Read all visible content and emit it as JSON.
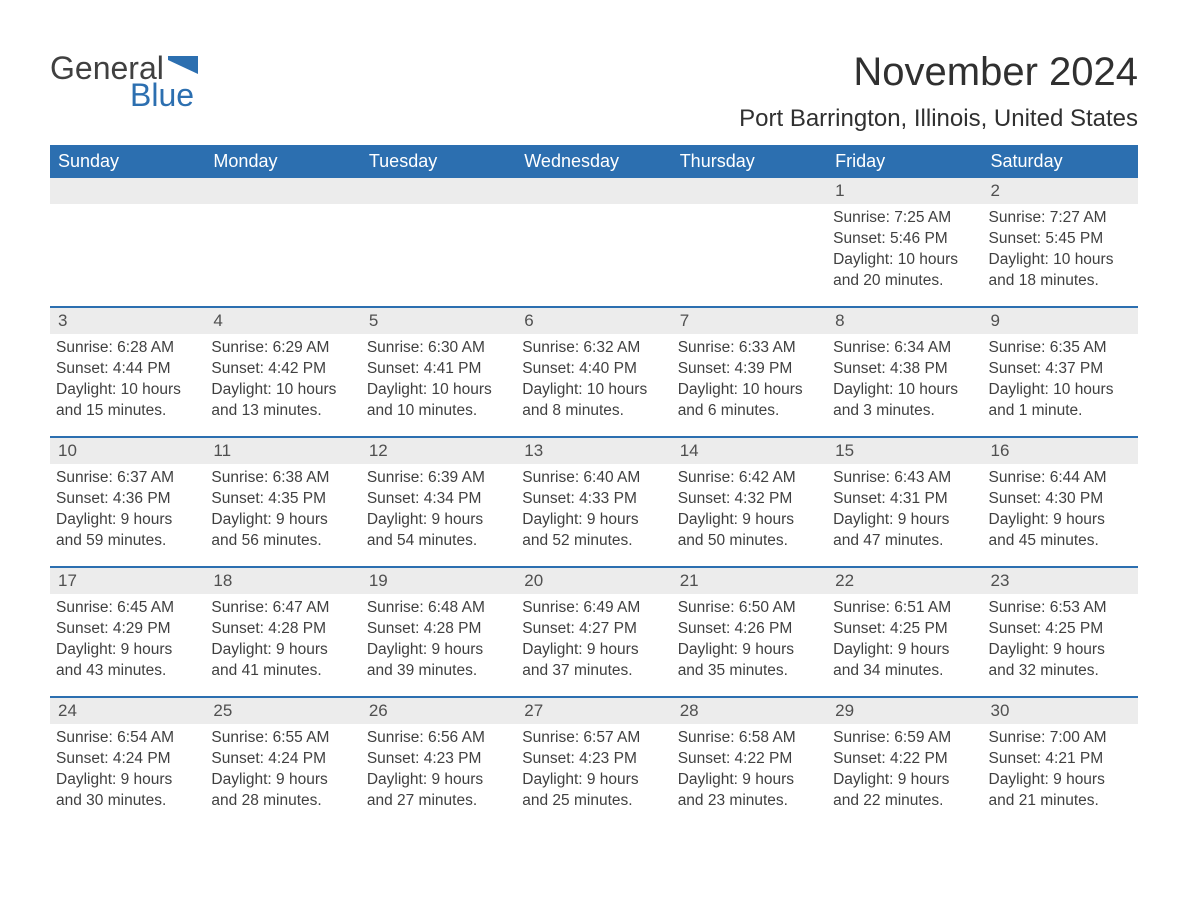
{
  "logo": {
    "word1": "General",
    "word2": "Blue",
    "flag_color": "#2c6fb0"
  },
  "title": "November 2024",
  "location": "Port Barrington, Illinois, United States",
  "colors": {
    "header_bg": "#2c6fb0",
    "header_text": "#ffffff",
    "daynum_bg": "#ececec",
    "week_divider": "#2c6fb0",
    "body_text": "#404040",
    "page_bg": "#ffffff"
  },
  "day_headers": [
    "Sunday",
    "Monday",
    "Tuesday",
    "Wednesday",
    "Thursday",
    "Friday",
    "Saturday"
  ],
  "weeks": [
    [
      {
        "empty": true
      },
      {
        "empty": true
      },
      {
        "empty": true
      },
      {
        "empty": true
      },
      {
        "empty": true
      },
      {
        "day": "1",
        "sunrise": "Sunrise: 7:25 AM",
        "sunset": "Sunset: 5:46 PM",
        "daylight": "Daylight: 10 hours and 20 minutes."
      },
      {
        "day": "2",
        "sunrise": "Sunrise: 7:27 AM",
        "sunset": "Sunset: 5:45 PM",
        "daylight": "Daylight: 10 hours and 18 minutes."
      }
    ],
    [
      {
        "day": "3",
        "sunrise": "Sunrise: 6:28 AM",
        "sunset": "Sunset: 4:44 PM",
        "daylight": "Daylight: 10 hours and 15 minutes."
      },
      {
        "day": "4",
        "sunrise": "Sunrise: 6:29 AM",
        "sunset": "Sunset: 4:42 PM",
        "daylight": "Daylight: 10 hours and 13 minutes."
      },
      {
        "day": "5",
        "sunrise": "Sunrise: 6:30 AM",
        "sunset": "Sunset: 4:41 PM",
        "daylight": "Daylight: 10 hours and 10 minutes."
      },
      {
        "day": "6",
        "sunrise": "Sunrise: 6:32 AM",
        "sunset": "Sunset: 4:40 PM",
        "daylight": "Daylight: 10 hours and 8 minutes."
      },
      {
        "day": "7",
        "sunrise": "Sunrise: 6:33 AM",
        "sunset": "Sunset: 4:39 PM",
        "daylight": "Daylight: 10 hours and 6 minutes."
      },
      {
        "day": "8",
        "sunrise": "Sunrise: 6:34 AM",
        "sunset": "Sunset: 4:38 PM",
        "daylight": "Daylight: 10 hours and 3 minutes."
      },
      {
        "day": "9",
        "sunrise": "Sunrise: 6:35 AM",
        "sunset": "Sunset: 4:37 PM",
        "daylight": "Daylight: 10 hours and 1 minute."
      }
    ],
    [
      {
        "day": "10",
        "sunrise": "Sunrise: 6:37 AM",
        "sunset": "Sunset: 4:36 PM",
        "daylight": "Daylight: 9 hours and 59 minutes."
      },
      {
        "day": "11",
        "sunrise": "Sunrise: 6:38 AM",
        "sunset": "Sunset: 4:35 PM",
        "daylight": "Daylight: 9 hours and 56 minutes."
      },
      {
        "day": "12",
        "sunrise": "Sunrise: 6:39 AM",
        "sunset": "Sunset: 4:34 PM",
        "daylight": "Daylight: 9 hours and 54 minutes."
      },
      {
        "day": "13",
        "sunrise": "Sunrise: 6:40 AM",
        "sunset": "Sunset: 4:33 PM",
        "daylight": "Daylight: 9 hours and 52 minutes."
      },
      {
        "day": "14",
        "sunrise": "Sunrise: 6:42 AM",
        "sunset": "Sunset: 4:32 PM",
        "daylight": "Daylight: 9 hours and 50 minutes."
      },
      {
        "day": "15",
        "sunrise": "Sunrise: 6:43 AM",
        "sunset": "Sunset: 4:31 PM",
        "daylight": "Daylight: 9 hours and 47 minutes."
      },
      {
        "day": "16",
        "sunrise": "Sunrise: 6:44 AM",
        "sunset": "Sunset: 4:30 PM",
        "daylight": "Daylight: 9 hours and 45 minutes."
      }
    ],
    [
      {
        "day": "17",
        "sunrise": "Sunrise: 6:45 AM",
        "sunset": "Sunset: 4:29 PM",
        "daylight": "Daylight: 9 hours and 43 minutes."
      },
      {
        "day": "18",
        "sunrise": "Sunrise: 6:47 AM",
        "sunset": "Sunset: 4:28 PM",
        "daylight": "Daylight: 9 hours and 41 minutes."
      },
      {
        "day": "19",
        "sunrise": "Sunrise: 6:48 AM",
        "sunset": "Sunset: 4:28 PM",
        "daylight": "Daylight: 9 hours and 39 minutes."
      },
      {
        "day": "20",
        "sunrise": "Sunrise: 6:49 AM",
        "sunset": "Sunset: 4:27 PM",
        "daylight": "Daylight: 9 hours and 37 minutes."
      },
      {
        "day": "21",
        "sunrise": "Sunrise: 6:50 AM",
        "sunset": "Sunset: 4:26 PM",
        "daylight": "Daylight: 9 hours and 35 minutes."
      },
      {
        "day": "22",
        "sunrise": "Sunrise: 6:51 AM",
        "sunset": "Sunset: 4:25 PM",
        "daylight": "Daylight: 9 hours and 34 minutes."
      },
      {
        "day": "23",
        "sunrise": "Sunrise: 6:53 AM",
        "sunset": "Sunset: 4:25 PM",
        "daylight": "Daylight: 9 hours and 32 minutes."
      }
    ],
    [
      {
        "day": "24",
        "sunrise": "Sunrise: 6:54 AM",
        "sunset": "Sunset: 4:24 PM",
        "daylight": "Daylight: 9 hours and 30 minutes."
      },
      {
        "day": "25",
        "sunrise": "Sunrise: 6:55 AM",
        "sunset": "Sunset: 4:24 PM",
        "daylight": "Daylight: 9 hours and 28 minutes."
      },
      {
        "day": "26",
        "sunrise": "Sunrise: 6:56 AM",
        "sunset": "Sunset: 4:23 PM",
        "daylight": "Daylight: 9 hours and 27 minutes."
      },
      {
        "day": "27",
        "sunrise": "Sunrise: 6:57 AM",
        "sunset": "Sunset: 4:23 PM",
        "daylight": "Daylight: 9 hours and 25 minutes."
      },
      {
        "day": "28",
        "sunrise": "Sunrise: 6:58 AM",
        "sunset": "Sunset: 4:22 PM",
        "daylight": "Daylight: 9 hours and 23 minutes."
      },
      {
        "day": "29",
        "sunrise": "Sunrise: 6:59 AM",
        "sunset": "Sunset: 4:22 PM",
        "daylight": "Daylight: 9 hours and 22 minutes."
      },
      {
        "day": "30",
        "sunrise": "Sunrise: 7:00 AM",
        "sunset": "Sunset: 4:21 PM",
        "daylight": "Daylight: 9 hours and 21 minutes."
      }
    ]
  ]
}
